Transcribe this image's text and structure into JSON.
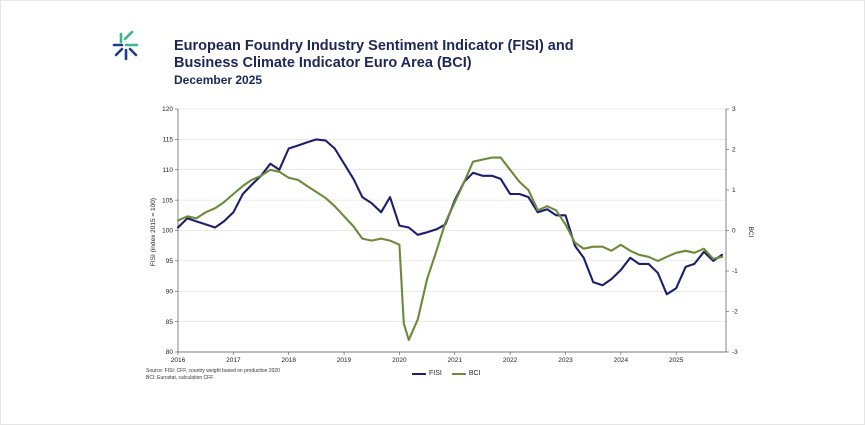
{
  "header": {
    "title_line1": "European Foundry Industry Sentiment Indicator (FISI) and",
    "title_line2": "Business Climate Indicator Euro Area (BCI)",
    "subtitle": "December 2025"
  },
  "source": {
    "line1": "Source: FISI: CFF, country weight based on production 2020",
    "line2": "BCI: Eurostat, calculation CFF"
  },
  "colors": {
    "fisi": "#1d1f6e",
    "bci": "#6b8a3a",
    "logo_green": "#3bb58a",
    "logo_blue": "#1d3c8c"
  },
  "chart_data": {
    "type": "line",
    "title": "European Foundry Industry Sentiment Indicator (FISI) and Business Climate Indicator Euro Area (BCI)",
    "subtitle": "December 2025",
    "xlabel": "",
    "ylabel": "FISI (index 2015 = 100)",
    "y2label": "BCI",
    "xlim": [
      2016,
      2025.9
    ],
    "ylim": [
      80,
      120
    ],
    "y2lim": [
      -3,
      3
    ],
    "x_ticks": [
      "2016",
      "2017",
      "2018",
      "2019",
      "2020",
      "2021",
      "2022",
      "2023",
      "2024",
      "2025"
    ],
    "y_ticks": [
      "80",
      "85",
      "90",
      "95",
      "100",
      "105",
      "110",
      "115",
      "120"
    ],
    "y2_ticks": [
      "-3",
      "-2",
      "-1",
      "0",
      "1",
      "2",
      "3"
    ],
    "grid": true,
    "legend": "bottom-center",
    "series": [
      {
        "name": "FISI",
        "axis": "left",
        "color": "#1d1f6e",
        "x": [
          2016.0,
          2016.17,
          2016.33,
          2016.5,
          2016.67,
          2016.83,
          2017.0,
          2017.17,
          2017.33,
          2017.5,
          2017.67,
          2017.83,
          2018.0,
          2018.17,
          2018.33,
          2018.5,
          2018.67,
          2018.83,
          2019.0,
          2019.17,
          2019.33,
          2019.5,
          2019.67,
          2019.83,
          2020.0,
          2020.17,
          2020.33,
          2020.5,
          2020.67,
          2020.83,
          2021.0,
          2021.17,
          2021.33,
          2021.5,
          2021.67,
          2021.83,
          2022.0,
          2022.17,
          2022.33,
          2022.5,
          2022.67,
          2022.83,
          2023.0,
          2023.17,
          2023.33,
          2023.5,
          2023.67,
          2023.83,
          2024.0,
          2024.17,
          2024.33,
          2024.5,
          2024.67,
          2024.83,
          2025.0,
          2025.17,
          2025.33,
          2025.5,
          2025.67,
          2025.83
        ],
        "values": [
          100.5,
          102.0,
          101.5,
          101.0,
          100.5,
          101.5,
          103.0,
          106.0,
          107.5,
          109.0,
          111.0,
          110.0,
          113.5,
          114.0,
          114.5,
          115.0,
          114.8,
          113.5,
          111.0,
          108.5,
          105.5,
          104.5,
          103.0,
          105.5,
          100.8,
          100.5,
          99.3,
          99.7,
          100.2,
          101.0,
          105.0,
          108.0,
          109.5,
          109.0,
          109.0,
          108.5,
          106.0,
          106.0,
          105.5,
          103.0,
          103.5,
          102.5,
          102.5,
          97.5,
          95.5,
          91.5,
          91.0,
          92.0,
          93.5,
          95.5,
          94.5,
          94.5,
          93.0,
          89.5,
          90.5,
          94.0,
          94.5,
          96.5,
          95.0,
          96.0
        ]
      },
      {
        "name": "BCI",
        "axis": "right",
        "color": "#6b8a3a",
        "x": [
          2016.0,
          2016.17,
          2016.33,
          2016.5,
          2016.67,
          2016.83,
          2017.0,
          2017.17,
          2017.33,
          2017.5,
          2017.67,
          2017.83,
          2018.0,
          2018.17,
          2018.33,
          2018.5,
          2018.67,
          2018.83,
          2019.0,
          2019.17,
          2019.33,
          2019.5,
          2019.67,
          2019.83,
          2020.0,
          2020.08,
          2020.17,
          2020.33,
          2020.5,
          2020.67,
          2020.83,
          2021.0,
          2021.17,
          2021.33,
          2021.5,
          2021.67,
          2021.83,
          2022.0,
          2022.17,
          2022.33,
          2022.5,
          2022.67,
          2022.83,
          2023.0,
          2023.17,
          2023.33,
          2023.5,
          2023.67,
          2023.83,
          2024.0,
          2024.17,
          2024.33,
          2024.5,
          2024.67,
          2024.83,
          2025.0,
          2025.17,
          2025.33,
          2025.5,
          2025.67,
          2025.83
        ],
        "values": [
          0.25,
          0.35,
          0.3,
          0.45,
          0.55,
          0.7,
          0.9,
          1.1,
          1.25,
          1.35,
          1.5,
          1.45,
          1.3,
          1.25,
          1.1,
          0.95,
          0.8,
          0.6,
          0.35,
          0.1,
          -0.2,
          -0.25,
          -0.2,
          -0.25,
          -0.35,
          -2.3,
          -2.7,
          -2.2,
          -1.2,
          -0.5,
          0.2,
          0.7,
          1.2,
          1.7,
          1.75,
          1.8,
          1.8,
          1.5,
          1.2,
          1.0,
          0.5,
          0.6,
          0.5,
          0.15,
          -0.3,
          -0.45,
          -0.4,
          -0.4,
          -0.5,
          -0.35,
          -0.5,
          -0.6,
          -0.65,
          -0.75,
          -0.65,
          -0.55,
          -0.5,
          -0.55,
          -0.45,
          -0.7,
          -0.65
        ]
      }
    ]
  }
}
